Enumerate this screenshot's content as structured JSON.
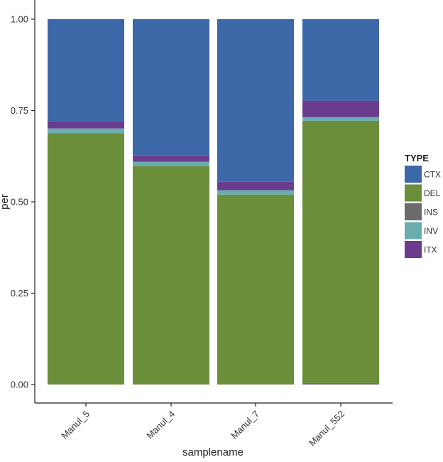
{
  "chart_data": {
    "type": "bar",
    "stacked": true,
    "categories": [
      "Manul_5",
      "Manul_4",
      "Manul_7",
      "Manul_552"
    ],
    "series": [
      {
        "name": "INS",
        "color": "#6b6b6b",
        "values": [
          0.0,
          0.0,
          0.0,
          0.004
        ]
      },
      {
        "name": "DEL",
        "color": "#6b8e3b",
        "values": [
          0.688,
          0.598,
          0.52,
          0.718
        ]
      },
      {
        "name": "INV",
        "color": "#6aadaf",
        "values": [
          0.013,
          0.012,
          0.012,
          0.01
        ]
      },
      {
        "name": "ITX",
        "color": "#6a3c8e",
        "values": [
          0.019,
          0.017,
          0.023,
          0.045
        ]
      },
      {
        "name": "CTX",
        "color": "#3d68a8",
        "values": [
          0.28,
          0.373,
          0.445,
          0.223
        ]
      }
    ],
    "legend_order": [
      "CTX",
      "DEL",
      "INS",
      "INV",
      "ITX"
    ],
    "legend_title": "TYPE",
    "legend_position": "right",
    "xlabel": "samplename",
    "ylabel": "per",
    "ylim": [
      0,
      1
    ],
    "yticks": [
      "0.00",
      "0.25",
      "0.50",
      "0.75",
      "1.00"
    ],
    "grid": false
  }
}
